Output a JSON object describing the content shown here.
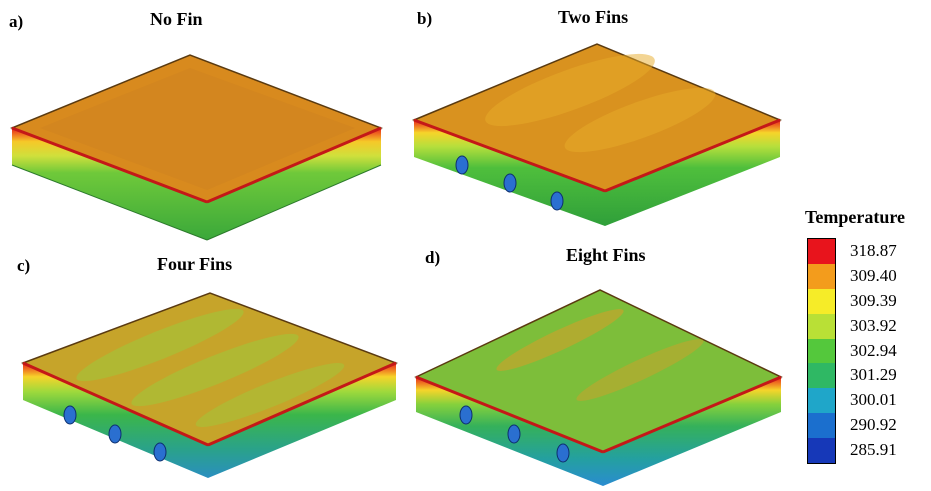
{
  "panels": [
    {
      "id": "a",
      "letter": "a)",
      "title": "No Fin"
    },
    {
      "id": "b",
      "letter": "b)",
      "title": "Two Fins"
    },
    {
      "id": "c",
      "letter": "c)",
      "title": "Four Fins"
    },
    {
      "id": "d",
      "letter": "d)",
      "title": "Eight Fins"
    }
  ],
  "legend": {
    "title": "Temperature",
    "ticks": [
      "318.87",
      "309.40",
      "309.39",
      "303.92",
      "302.94",
      "301.29",
      "300.01",
      "290.92",
      "285.91"
    ],
    "colors": [
      "#e8141c",
      "#f39c1c",
      "#f6ec28",
      "#b9e036",
      "#54c83c",
      "#2fb864",
      "#1fa6c9",
      "#1b6fce",
      "#1638b8"
    ]
  }
}
